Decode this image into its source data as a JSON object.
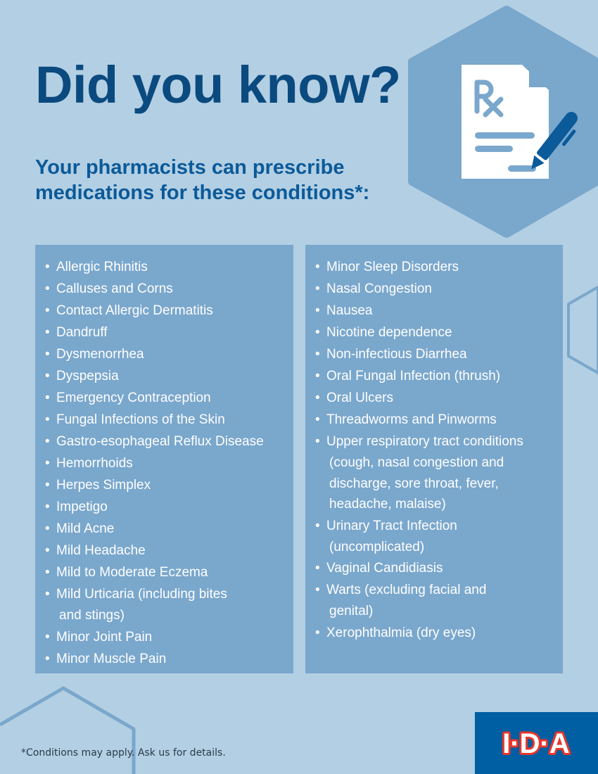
{
  "header": {
    "title": "Did you know?",
    "subtitle": "Your pharmacists can prescribe medications for these conditions*:"
  },
  "icon": "prescription-document-with-pen-icon",
  "colors": {
    "background": "#b3cfe3",
    "panel": "#7aa7cc",
    "title": "#0b4a7f",
    "logo_bg": "#005ea2"
  },
  "left_list": [
    {
      "label": "Allergic Rhinitis"
    },
    {
      "label": "Calluses and Corns"
    },
    {
      "label": "Contact Allergic Dermatitis"
    },
    {
      "label": "Dandruff"
    },
    {
      "label": "Dysmenorrhea"
    },
    {
      "label": "Dyspepsia"
    },
    {
      "label": "Emergency Contraception"
    },
    {
      "label": "Fungal Infections of the Skin"
    },
    {
      "label": "Gastro-esophageal Reflux Disease"
    },
    {
      "label": "Hemorrhoids"
    },
    {
      "label": "Herpes Simplex"
    },
    {
      "label": "Impetigo"
    },
    {
      "label": "Mild Acne"
    },
    {
      "label": "Mild Headache"
    },
    {
      "label": "Mild to Moderate Eczema"
    },
    {
      "label": "Mild Urticaria (including bites",
      "cont": "and stings)"
    },
    {
      "label": "Minor Joint Pain"
    },
    {
      "label": "Minor Muscle Pain"
    }
  ],
  "right_list": [
    {
      "label": "Minor Sleep Disorders"
    },
    {
      "label": "Nasal Congestion"
    },
    {
      "label": "Nausea"
    },
    {
      "label": "Nicotine dependence"
    },
    {
      "label": "Non-infectious Diarrhea"
    },
    {
      "label": "Oral Fungal Infection (thrush)"
    },
    {
      "label": "Oral Ulcers"
    },
    {
      "label": "Threadworms and Pinworms"
    },
    {
      "label": "Upper respiratory tract conditions",
      "cont": "(cough, nasal congestion and discharge, sore throat, fever, headache, malaise)"
    },
    {
      "label": "Urinary Tract Infection",
      "cont": "(uncomplicated)"
    },
    {
      "label": "Vaginal Candidiasis"
    },
    {
      "label": "Warts (excluding facial and",
      "cont": "genital)"
    },
    {
      "label": "Xerophthalmia (dry eyes)"
    }
  ],
  "footer": {
    "note": "*Conditions may apply. Ask us for details.",
    "logo_text": "I·D·A"
  }
}
